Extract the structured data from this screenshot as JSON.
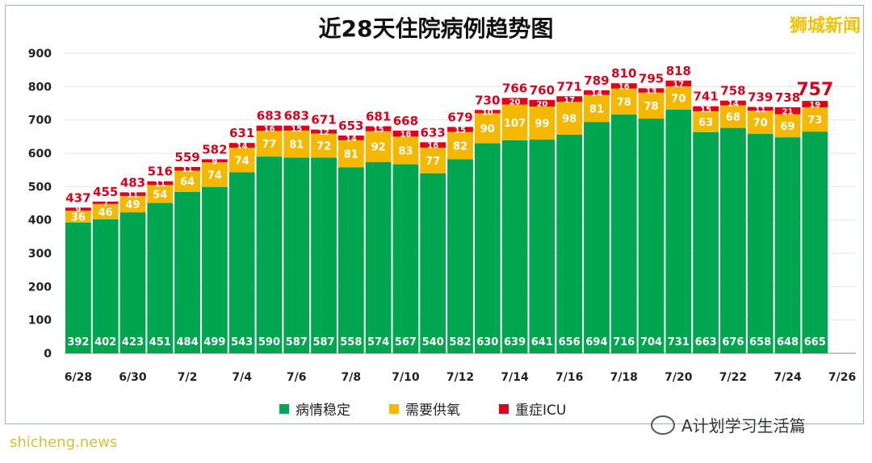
{
  "header": {
    "title": "近28天住院病例趋势图",
    "brand": "狮城新闻"
  },
  "watermark": {
    "text": "A计划学习生活篇",
    "icon": "wechat-icon"
  },
  "source": {
    "text": "shicheng.news"
  },
  "colors": {
    "stable": "#00a550",
    "oxygen": "#f5b800",
    "icu": "#e0001b",
    "total_label": "#d9001b",
    "grid": "#e6e6e6",
    "axis_text": "#222222"
  },
  "chart_data": {
    "type": "bar",
    "stacked": true,
    "title": "近28天住院病例趋势图",
    "ylim": [
      0,
      900
    ],
    "yticks": [
      0,
      100,
      200,
      300,
      400,
      500,
      600,
      700,
      800,
      900
    ],
    "x_tick_labels": [
      "6/28",
      "6/30",
      "7/2",
      "7/4",
      "7/6",
      "7/8",
      "7/10",
      "7/12",
      "7/14",
      "7/16",
      "7/18",
      "7/20",
      "7/22",
      "7/24",
      "7/26"
    ],
    "grid": true,
    "legend_position": "bottom",
    "series": [
      {
        "name": "病情稳定",
        "values": [
          392,
          402,
          423,
          451,
          484,
          499,
          543,
          590,
          587,
          587,
          558,
          574,
          567,
          540,
          582,
          630,
          639,
          641,
          656,
          694,
          716,
          704,
          731,
          663,
          676,
          658,
          648,
          665
        ]
      },
      {
        "name": "需要供氧",
        "values": [
          36,
          46,
          49,
          54,
          64,
          74,
          74,
          77,
          81,
          72,
          81,
          92,
          83,
          77,
          82,
          90,
          107,
          99,
          98,
          81,
          78,
          78,
          70,
          63,
          68,
          70,
          69,
          73
        ]
      },
      {
        "name": "重症ICU",
        "values": [
          9,
          7,
          11,
          11,
          11,
          9,
          14,
          16,
          15,
          12,
          14,
          15,
          18,
          16,
          15,
          10,
          20,
          20,
          17,
          14,
          16,
          13,
          17,
          15,
          14,
          11,
          21,
          19
        ]
      }
    ],
    "totals": [
      437,
      455,
      483,
      516,
      559,
      582,
      631,
      683,
      683,
      671,
      653,
      681,
      668,
      633,
      679,
      730,
      766,
      760,
      771,
      789,
      810,
      795,
      818,
      741,
      758,
      739,
      738,
      757
    ]
  }
}
